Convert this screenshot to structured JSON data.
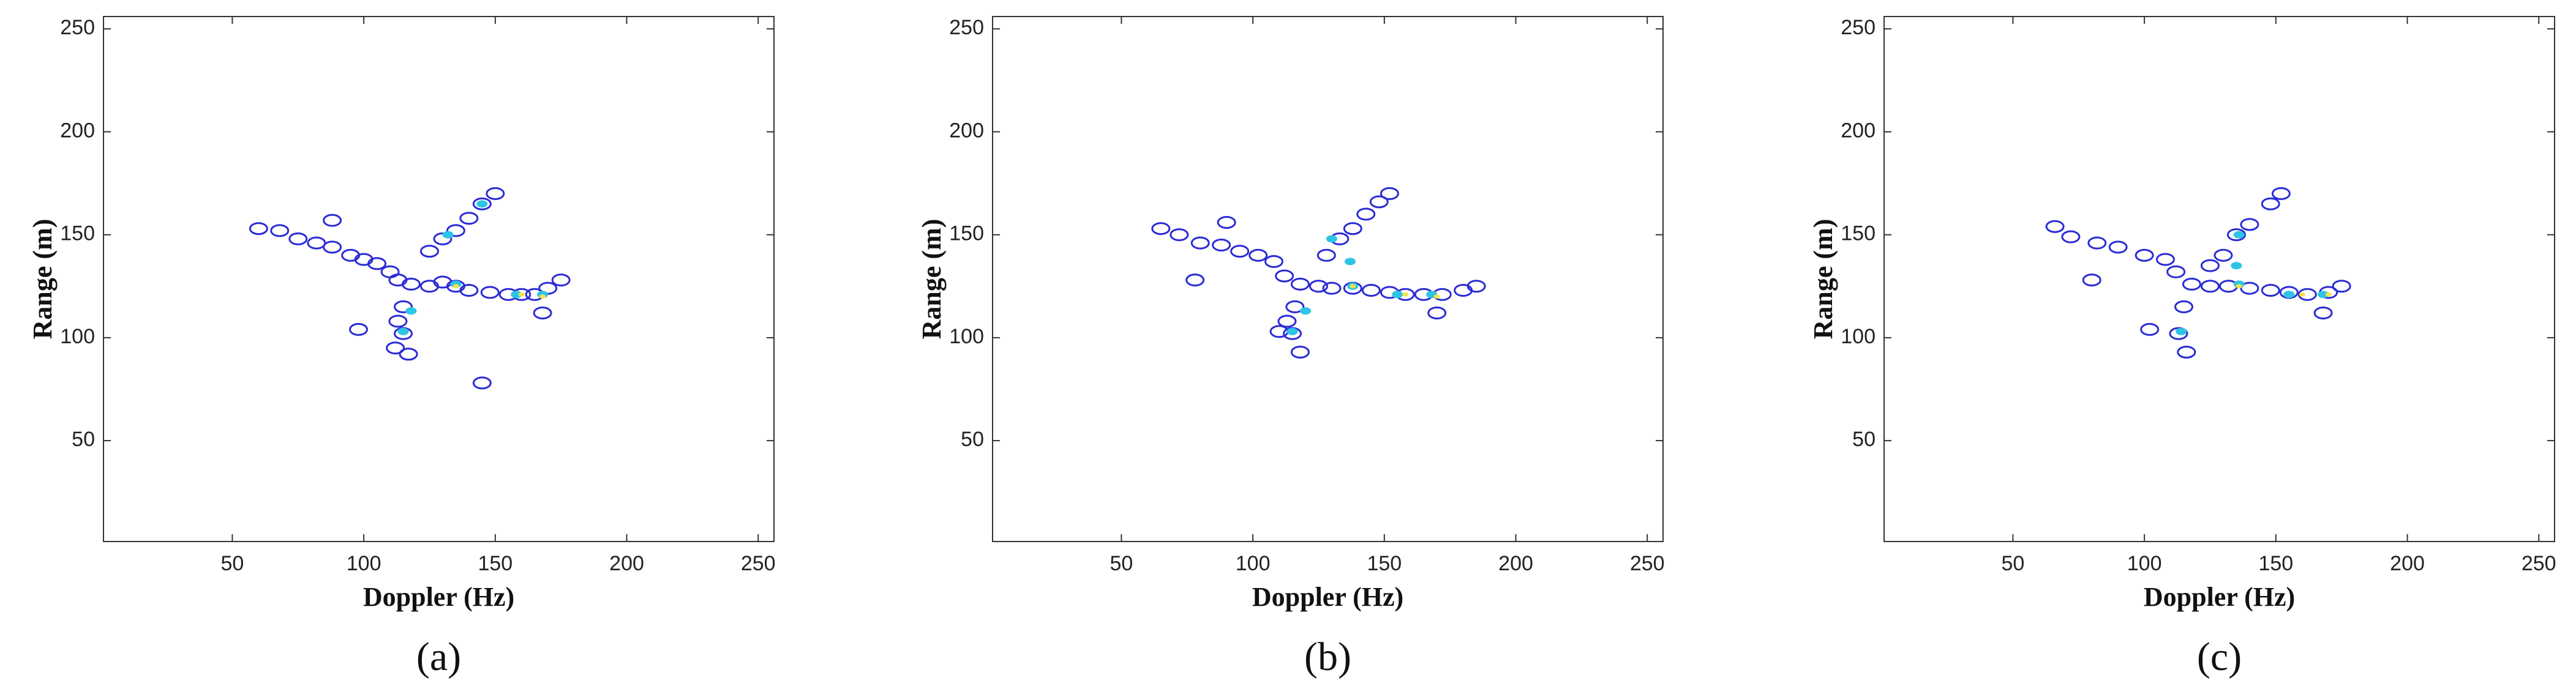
{
  "chart_data": [
    {
      "type": "contour",
      "caption": "(a)",
      "xlabel": "Doppler (Hz)",
      "ylabel": "Range (m)",
      "xlim": [
        1,
        256
      ],
      "ylim": [
        1,
        256
      ],
      "xticks": [
        50,
        100,
        150,
        200,
        250
      ],
      "yticks": [
        50,
        100,
        150,
        200,
        250
      ],
      "series": [
        {
          "color": "#2b2bd6",
          "x": [
            60,
            68,
            75,
            82,
            88,
            95,
            100,
            105,
            110,
            113,
            118,
            125,
            130,
            135,
            140,
            148,
            155,
            160,
            165,
            170,
            175,
            168,
            125,
            130,
            135,
            140,
            145,
            150,
            115,
            113,
            115,
            112,
            117,
            98,
            145,
            88
          ],
          "y": [
            153,
            152,
            148,
            146,
            144,
            140,
            138,
            136,
            132,
            128,
            126,
            125,
            127,
            125,
            123,
            122,
            121,
            121,
            121,
            124,
            128,
            112,
            142,
            148,
            152,
            158,
            165,
            170,
            115,
            108,
            102,
            95,
            92,
            104,
            78,
            157
          ]
        },
        {
          "color": "#2ec4e6",
          "x": [
            132,
            145,
            115,
            135,
            158,
            168,
            118
          ],
          "y": [
            150,
            165,
            103,
            126,
            121,
            121,
            113
          ]
        },
        {
          "color": "#f2e14c",
          "x": [
            135,
            160,
            168
          ],
          "y": [
            125,
            121,
            120
          ]
        }
      ]
    },
    {
      "type": "contour",
      "caption": "(b)",
      "xlabel": "Doppler (Hz)",
      "ylabel": "Range (m)",
      "xlim": [
        1,
        256
      ],
      "ylim": [
        1,
        256
      ],
      "xticks": [
        50,
        100,
        150,
        200,
        250
      ],
      "yticks": [
        50,
        100,
        150,
        200,
        250
      ],
      "series": [
        {
          "color": "#2b2bd6",
          "x": [
            65,
            72,
            80,
            88,
            95,
            102,
            108,
            112,
            118,
            125,
            130,
            138,
            145,
            152,
            158,
            165,
            172,
            180,
            185,
            170,
            128,
            133,
            138,
            143,
            148,
            152,
            116,
            113,
            115,
            118,
            110,
            78,
            90
          ],
          "y": [
            153,
            150,
            146,
            145,
            142,
            140,
            137,
            130,
            126,
            125,
            124,
            124,
            123,
            122,
            121,
            121,
            121,
            123,
            125,
            112,
            140,
            148,
            153,
            160,
            166,
            170,
            115,
            108,
            102,
            93,
            103,
            128,
            156
          ]
        },
        {
          "color": "#2ec4e6",
          "x": [
            130,
            137,
            115,
            138,
            155,
            168,
            120
          ],
          "y": [
            148,
            137,
            103,
            125,
            121,
            121,
            113
          ]
        },
        {
          "color": "#f2e14c",
          "x": [
            138,
            158,
            170
          ],
          "y": [
            125,
            121,
            120
          ]
        }
      ]
    },
    {
      "type": "contour",
      "caption": "(c)",
      "xlabel": "Doppler (Hz)",
      "ylabel": "Range (m)",
      "xlim": [
        1,
        256
      ],
      "ylim": [
        1,
        256
      ],
      "xticks": [
        50,
        100,
        150,
        200,
        250
      ],
      "yticks": [
        50,
        100,
        150,
        200,
        250
      ],
      "series": [
        {
          "color": "#2b2bd6",
          "x": [
            66,
            72,
            82,
            90,
            100,
            108,
            112,
            118,
            125,
            132,
            140,
            148,
            155,
            162,
            170,
            175,
            168,
            130,
            135,
            140,
            148,
            152,
            115,
            113,
            116,
            102,
            80,
            125
          ],
          "y": [
            154,
            149,
            146,
            144,
            140,
            138,
            132,
            126,
            125,
            125,
            124,
            123,
            122,
            121,
            122,
            125,
            112,
            140,
            150,
            155,
            165,
            170,
            115,
            102,
            93,
            104,
            128,
            135
          ]
        },
        {
          "color": "#2ec4e6",
          "x": [
            136,
            135,
            114,
            136,
            155,
            168
          ],
          "y": [
            150,
            135,
            103,
            126,
            121,
            121
          ]
        },
        {
          "color": "#f2e14c",
          "x": [
            136,
            160,
            170
          ],
          "y": [
            125,
            121,
            121
          ]
        }
      ]
    }
  ]
}
